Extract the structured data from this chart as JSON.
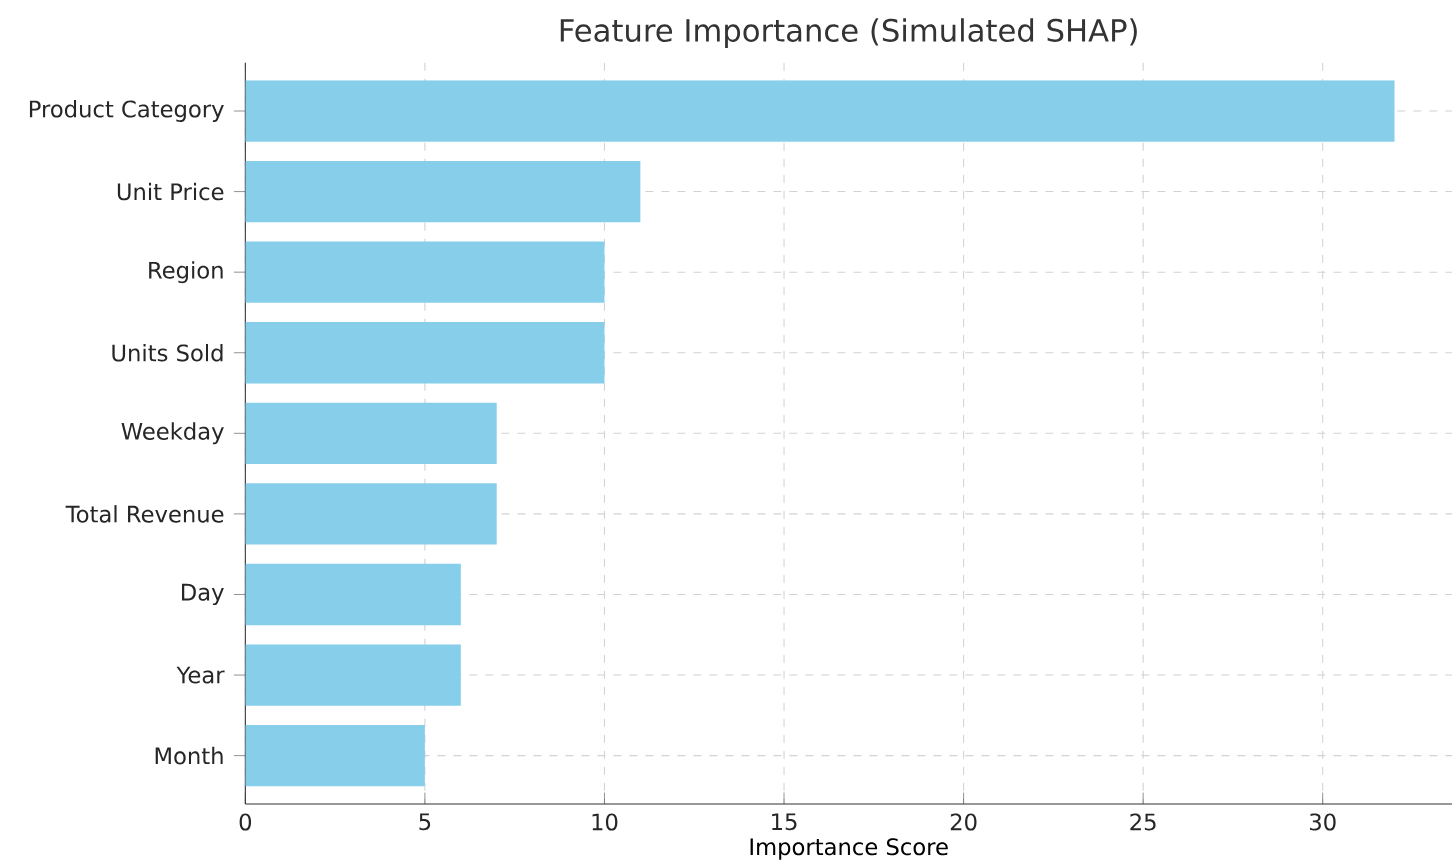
{
  "chart_data": {
    "type": "bar",
    "orientation": "horizontal",
    "title": "Feature Importance (Simulated SHAP)",
    "xlabel": "Importance Score",
    "categories": [
      "Product Category",
      "Unit Price",
      "Region",
      "Units Sold",
      "Weekday",
      "Total Revenue",
      "Day",
      "Year",
      "Month"
    ],
    "values": [
      32,
      11,
      10,
      10,
      7,
      7,
      6,
      6,
      5
    ],
    "color": "#87ceeb",
    "xlim": [
      0,
      33.6
    ],
    "xticks": [
      0,
      5,
      10,
      15,
      20,
      25,
      30
    ],
    "grid": true
  }
}
